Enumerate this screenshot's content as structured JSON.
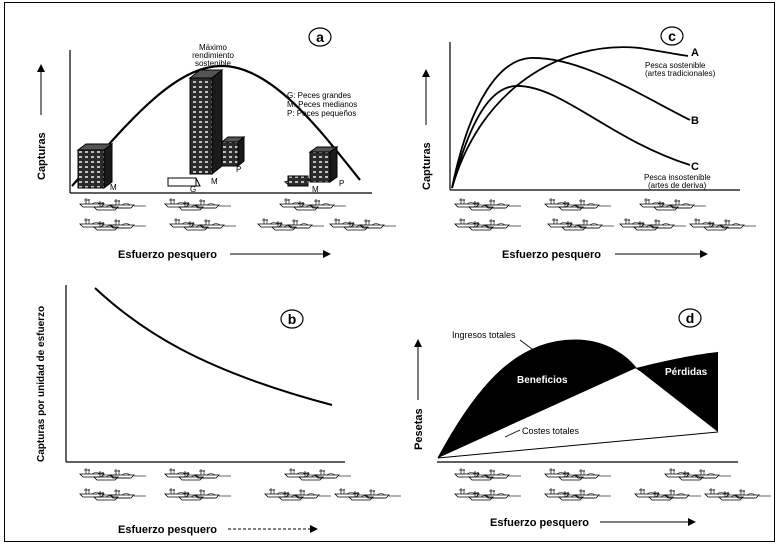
{
  "panels": {
    "a": {
      "letter": "a",
      "ylabel": "Capturas",
      "peak_label_lines": [
        "Máximo",
        "rendimiento",
        "sostenible"
      ],
      "legend_lines": [
        "G: Peces grandes",
        "M: Peces medianos",
        "P: Peces pequeños"
      ],
      "stack_labels": {
        "left_m": "M",
        "center_g": "G",
        "center_m": "M",
        "center_p": "P",
        "right_m": "M",
        "right_p": "P"
      }
    },
    "b": {
      "letter": "b",
      "ylabel": "Capturas por unidad de esfuerzo",
      "xlabel": "Esfuerzo pesquero"
    },
    "c": {
      "letter": "c",
      "ylabel": "Capturas",
      "xlabel": "Esfuerzo pesquero",
      "series": [
        {
          "letter": "A",
          "note_lines": [
            "Pesca sostenible",
            "(artes tradicionales)"
          ]
        },
        {
          "letter": "B",
          "note_lines": []
        },
        {
          "letter": "C",
          "note_lines": [
            "Pesca insostenible",
            "(artes de deriva)"
          ]
        }
      ]
    },
    "d": {
      "letter": "d",
      "ylabel": "Pesetas",
      "xlabel": "Esfuerzo pesquero",
      "revenue_label": "Ingresos totales",
      "cost_label": "Costes totales",
      "profit_label": "Beneficios",
      "loss_label": "Pérdidas"
    },
    "shared": {
      "xlabel_a": "Esfuerzo pesquero"
    }
  },
  "colors": {
    "ink": "#000000",
    "paper": "#ffffff",
    "building": "#2b2b2b"
  }
}
